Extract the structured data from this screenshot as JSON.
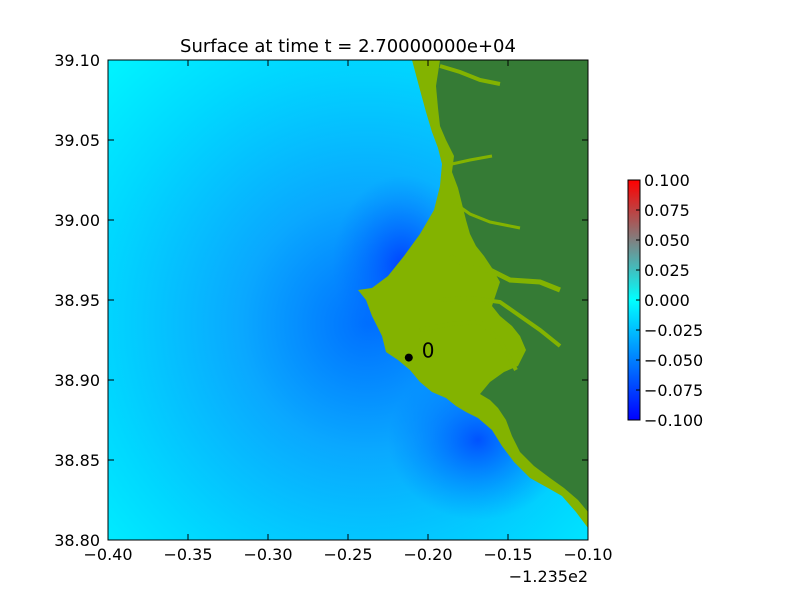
{
  "chart_data": {
    "type": "heatmap",
    "title": "Surface at time t = 2.70000000e+04",
    "x_offset_label": "−1.235e2",
    "x_ticks": [
      "−0.40",
      "−0.35",
      "−0.30",
      "−0.25",
      "−0.20",
      "−0.15",
      "−0.10"
    ],
    "x_tick_values": [
      -0.4,
      -0.35,
      -0.3,
      -0.25,
      -0.2,
      -0.15,
      -0.1
    ],
    "y_ticks": [
      "39.10",
      "39.05",
      "39.00",
      "38.95",
      "38.90",
      "38.85",
      "38.80"
    ],
    "y_tick_values": [
      39.1,
      39.05,
      39.0,
      38.95,
      38.9,
      38.85,
      38.8
    ],
    "xlim": [
      -0.4,
      -0.1
    ],
    "ylim": [
      38.8,
      39.1
    ],
    "grid": false,
    "colorbar": {
      "ticks": [
        "0.100",
        "0.075",
        "0.050",
        "0.025",
        "0.000",
        "−0.025",
        "−0.050",
        "−0.075",
        "−0.100"
      ],
      "tick_values": [
        0.1,
        0.075,
        0.05,
        0.025,
        0.0,
        -0.025,
        -0.05,
        -0.075,
        -0.1
      ],
      "range": [
        -0.1,
        0.1
      ],
      "colors": {
        "min": "#0000ff",
        "mid": "#00ffff",
        "upper": "#808080",
        "max": "#ff0000"
      }
    },
    "gauge": {
      "label": "0",
      "x": -0.212,
      "y": 38.914
    },
    "colors": {
      "land_dark": "#357b35",
      "land_light": "#83b300",
      "water": "#00e5ff",
      "water_deep": "#0058ff"
    }
  }
}
